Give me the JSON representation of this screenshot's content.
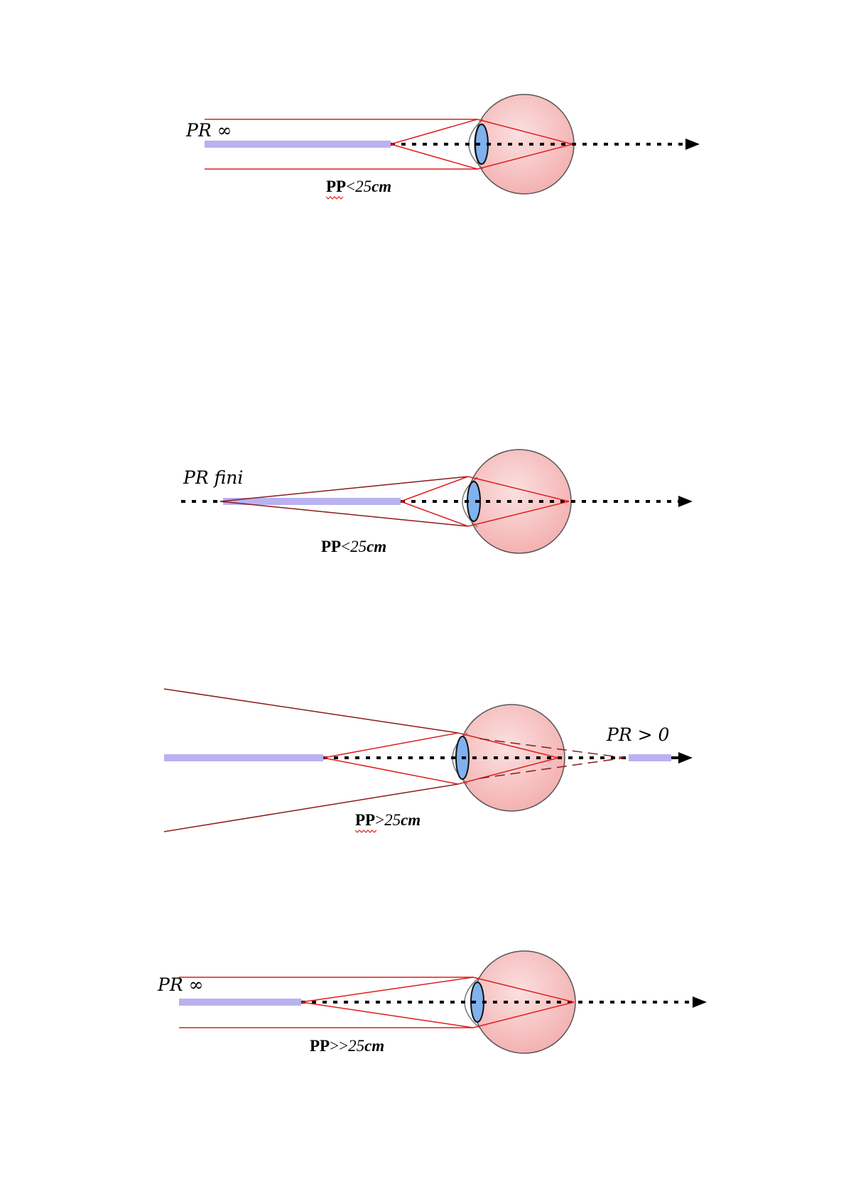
{
  "diagrams": [
    {
      "pr_label": "PR ∞",
      "pp_main": "PP",
      "pp_rel": "<",
      "pp_value": "25",
      "pp_unit": "cm",
      "pp_spell_mark": true
    },
    {
      "pr_label": "PR fini",
      "pp_main": "PP",
      "pp_rel": "<",
      "pp_value": "25",
      "pp_unit": "cm",
      "pp_spell_mark": false
    },
    {
      "pr_label": "PR > 0",
      "pp_main": "PP",
      "pp_rel": ">",
      "pp_value": "25",
      "pp_unit": "cm",
      "pp_spell_mark": true
    },
    {
      "pr_label": "PR ∞",
      "pp_main": "PP",
      "pp_rel": ">>",
      "pp_value": "25",
      "pp_unit": "cm",
      "pp_spell_mark": false
    }
  ],
  "colors": {
    "ray": "#e01c1c",
    "ray_dark": "#8b1a1a",
    "range_bar": "#b9b2f0",
    "eyeball_fill": "#f7c3c3",
    "eyeball_stroke": "#555555",
    "lens_fill": "#7fb2ee",
    "axis": "#000000",
    "spell_mark": "#e02020"
  }
}
